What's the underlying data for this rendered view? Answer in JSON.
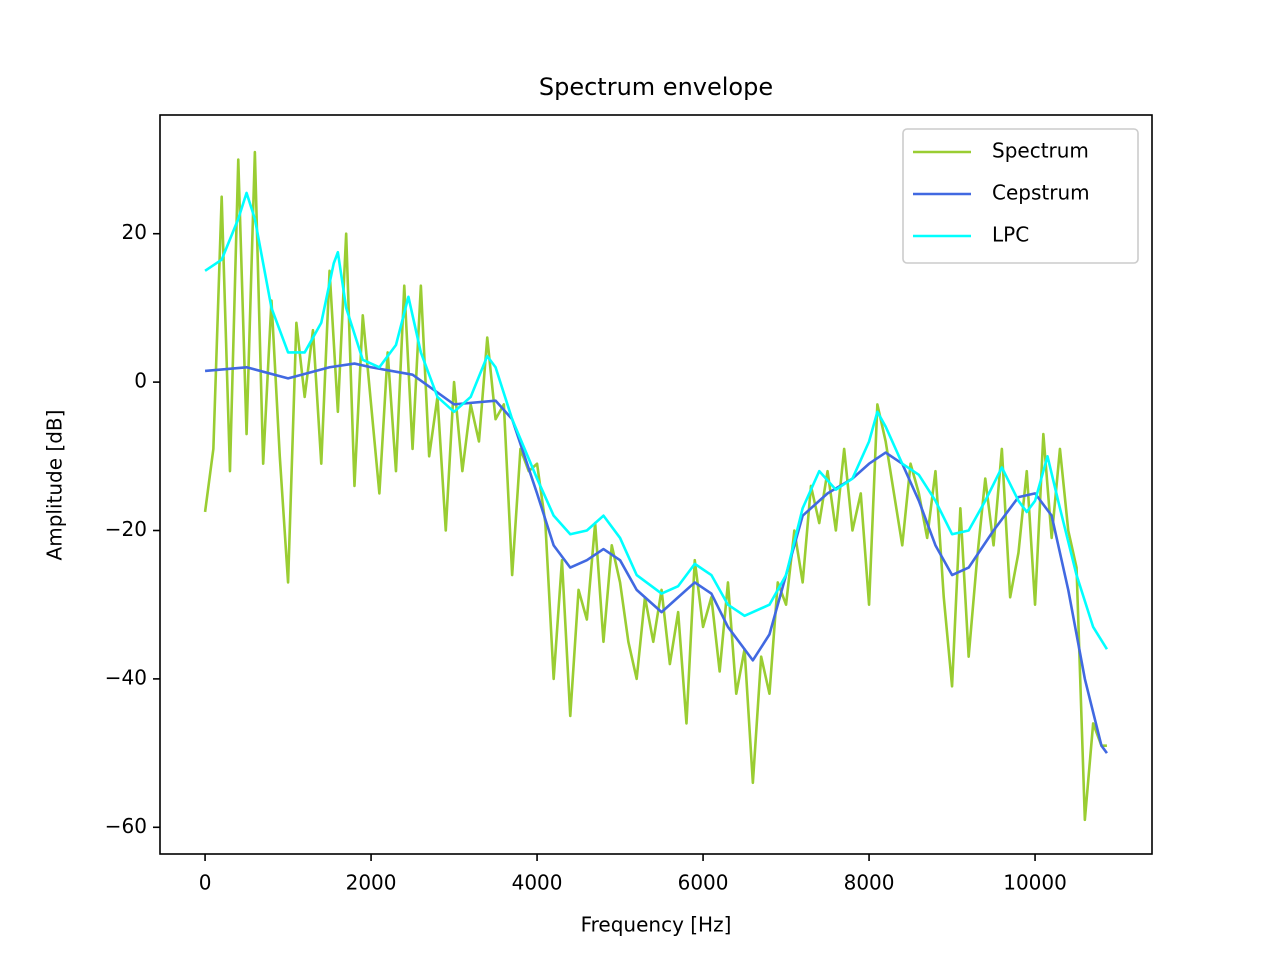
{
  "chart_data": {
    "type": "line",
    "title": "Spectrum envelope",
    "x_label": "Frequency [Hz]",
    "y_label": "Amplitude [dB]",
    "xlim": [
      -543,
      11409
    ],
    "ylim": [
      -63.6,
      36.0
    ],
    "xticks": [
      0,
      2000,
      4000,
      6000,
      8000,
      10000
    ],
    "yticks": [
      {
        "value": -60,
        "label": "−60"
      },
      {
        "value": -40,
        "label": "−40"
      },
      {
        "value": -20,
        "label": "−20"
      },
      0,
      20
    ],
    "grid": false,
    "legend": "upper right",
    "series": [
      {
        "name": "Spectrum",
        "color": "#9acd32",
        "x": [
          0,
          100,
          200,
          300,
          400,
          500,
          600,
          700,
          800,
          900,
          1000,
          1100,
          1200,
          1300,
          1400,
          1500,
          1600,
          1700,
          1800,
          1900,
          2000,
          2100,
          2200,
          2300,
          2400,
          2500,
          2600,
          2700,
          2800,
          2900,
          3000,
          3100,
          3200,
          3300,
          3400,
          3500,
          3600,
          3700,
          3800,
          3900,
          4000,
          4100,
          4200,
          4300,
          4400,
          4500,
          4600,
          4700,
          4800,
          4900,
          5000,
          5100,
          5200,
          5300,
          5400,
          5500,
          5600,
          5700,
          5800,
          5900,
          6000,
          6100,
          6200,
          6300,
          6400,
          6500,
          6600,
          6700,
          6800,
          6900,
          7000,
          7100,
          7200,
          7300,
          7400,
          7500,
          7600,
          7700,
          7800,
          7900,
          8000,
          8100,
          8200,
          8300,
          8400,
          8500,
          8600,
          8700,
          8800,
          8900,
          9000,
          9100,
          9200,
          9300,
          9400,
          9500,
          9600,
          9700,
          9800,
          9900,
          10000,
          10100,
          10200,
          10300,
          10400,
          10500,
          10600,
          10700,
          10800,
          10866
        ],
        "values": [
          -17.5,
          -9,
          25,
          -12,
          30,
          -7,
          31,
          -11,
          11,
          -10,
          -27,
          8,
          -2,
          7,
          -11,
          15,
          -4,
          20,
          -14,
          9,
          -3,
          -15,
          4,
          -12,
          13,
          -9,
          13,
          -10,
          -2,
          -20,
          0,
          -12,
          -3,
          -8,
          6,
          -5,
          -3,
          -26,
          -9,
          -12,
          -11,
          -19,
          -40,
          -24,
          -45,
          -28,
          -32,
          -19,
          -35,
          -22,
          -27,
          -35,
          -40,
          -29,
          -35,
          -28,
          -38,
          -31,
          -46,
          -24,
          -33,
          -29,
          -39,
          -27,
          -42,
          -36,
          -54,
          -37,
          -42,
          -27,
          -30,
          -20,
          -27,
          -14,
          -19,
          -12,
          -20,
          -9,
          -20,
          -15,
          -30,
          -3,
          -8,
          -15,
          -22,
          -11,
          -15,
          -21,
          -12,
          -29,
          -41,
          -17,
          -37,
          -24,
          -13,
          -22,
          -9,
          -29,
          -23,
          -12,
          -30,
          -7,
          -21,
          -9,
          -20,
          -25,
          -59,
          -46,
          -49,
          -49
        ]
      },
      {
        "name": "Cepstrum",
        "color": "#4169e1",
        "x": [
          0,
          500,
          1000,
          1500,
          1800,
          2000,
          2500,
          3000,
          3500,
          3700,
          4000,
          4200,
          4400,
          4600,
          4800,
          5000,
          5200,
          5500,
          5700,
          5900,
          6100,
          6300,
          6600,
          6800,
          7000,
          7200,
          7500,
          7800,
          8000,
          8200,
          8400,
          8600,
          8800,
          9000,
          9200,
          9500,
          9800,
          10000,
          10200,
          10400,
          10600,
          10800,
          10866
        ],
        "values": [
          1.5,
          2,
          0.5,
          2,
          2.5,
          2,
          1,
          -3,
          -2.5,
          -5,
          -15,
          -22,
          -25,
          -24,
          -22.5,
          -24,
          -28,
          -31,
          -29,
          -27,
          -28.5,
          -33,
          -37.5,
          -34,
          -26,
          -18,
          -15,
          -13,
          -11,
          -9.5,
          -11,
          -16,
          -22,
          -26,
          -25,
          -20,
          -15.5,
          -15,
          -18,
          -28,
          -40,
          -49,
          -50
        ]
      },
      {
        "name": "LPC",
        "color": "#00ffff",
        "x": [
          0,
          200,
          400,
          500,
          600,
          800,
          1000,
          1200,
          1400,
          1550,
          1600,
          1700,
          1900,
          2100,
          2300,
          2450,
          2600,
          2800,
          3000,
          3200,
          3400,
          3500,
          3700,
          4000,
          4200,
          4400,
          4600,
          4800,
          5000,
          5200,
          5500,
          5700,
          5900,
          6100,
          6300,
          6500,
          6800,
          7000,
          7200,
          7400,
          7600,
          7800,
          8000,
          8100,
          8200,
          8400,
          8600,
          8800,
          9000,
          9200,
          9400,
          9600,
          9800,
          9900,
          10000,
          10150,
          10300,
          10500,
          10700,
          10866
        ],
        "values": [
          15,
          16.5,
          22,
          25.5,
          22,
          10,
          4,
          4,
          8,
          16,
          17.5,
          10,
          3,
          2,
          5,
          11.5,
          4,
          -2,
          -4,
          -2,
          3.5,
          2,
          -5,
          -13,
          -18,
          -20.5,
          -20,
          -18,
          -21,
          -26,
          -28.5,
          -27.5,
          -24.5,
          -26,
          -30,
          -31.5,
          -30,
          -26,
          -17,
          -12,
          -14.5,
          -13,
          -8,
          -4,
          -6,
          -11,
          -12.5,
          -16,
          -20.5,
          -20,
          -16,
          -11.5,
          -16,
          -17.5,
          -16,
          -10,
          -17,
          -26,
          -33,
          -36
        ]
      }
    ]
  }
}
